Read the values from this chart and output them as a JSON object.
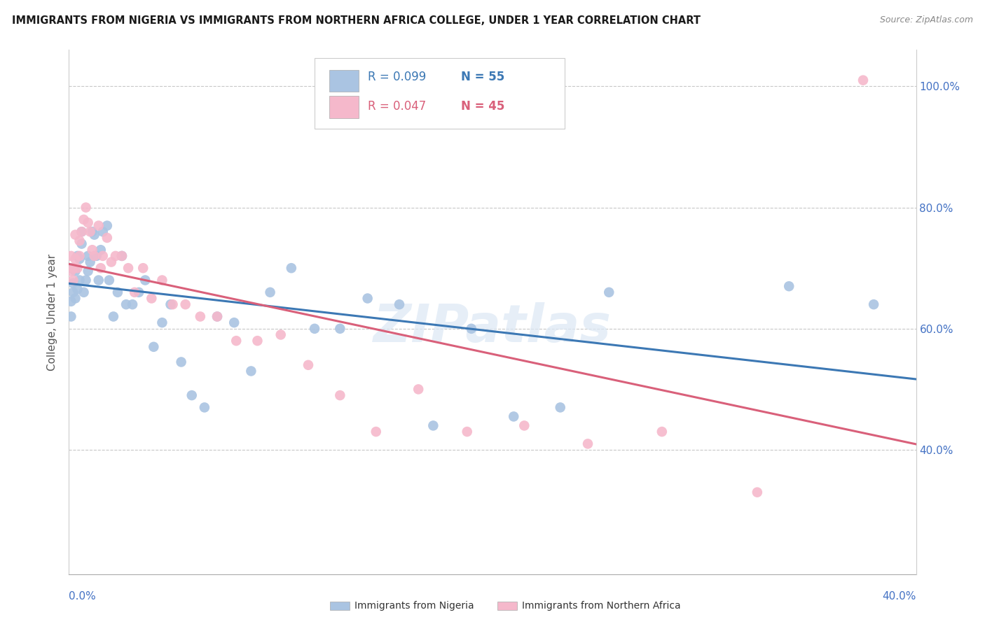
{
  "title": "IMMIGRANTS FROM NIGERIA VS IMMIGRANTS FROM NORTHERN AFRICA COLLEGE, UNDER 1 YEAR CORRELATION CHART",
  "source": "Source: ZipAtlas.com",
  "ylabel": "College, Under 1 year",
  "watermark": "ZIPatlas",
  "legend_nigeria_R": "R = 0.099",
  "legend_nigeria_N": "N = 55",
  "legend_north_africa_R": "R = 0.047",
  "legend_north_africa_N": "N = 45",
  "nigeria_color": "#aac4e2",
  "nigeria_line_color": "#3c78b4",
  "north_africa_color": "#f5b8cb",
  "north_africa_line_color": "#d9607a",
  "xlim": [
    0.0,
    0.4
  ],
  "ylim": [
    0.195,
    1.06
  ],
  "nigeria_x": [
    0.001,
    0.001,
    0.001,
    0.002,
    0.002,
    0.003,
    0.003,
    0.004,
    0.004,
    0.005,
    0.005,
    0.006,
    0.006,
    0.007,
    0.008,
    0.009,
    0.009,
    0.01,
    0.011,
    0.012,
    0.013,
    0.014,
    0.015,
    0.016,
    0.018,
    0.019,
    0.021,
    0.023,
    0.025,
    0.027,
    0.03,
    0.033,
    0.036,
    0.04,
    0.044,
    0.048,
    0.053,
    0.058,
    0.064,
    0.07,
    0.078,
    0.086,
    0.095,
    0.105,
    0.116,
    0.128,
    0.141,
    0.156,
    0.172,
    0.19,
    0.21,
    0.232,
    0.255,
    0.34,
    0.38
  ],
  "nigeria_y": [
    0.7,
    0.645,
    0.62,
    0.675,
    0.66,
    0.695,
    0.65,
    0.72,
    0.665,
    0.68,
    0.715,
    0.74,
    0.76,
    0.66,
    0.68,
    0.72,
    0.695,
    0.71,
    0.76,
    0.755,
    0.72,
    0.68,
    0.73,
    0.76,
    0.77,
    0.68,
    0.62,
    0.66,
    0.72,
    0.64,
    0.64,
    0.66,
    0.68,
    0.57,
    0.61,
    0.64,
    0.545,
    0.49,
    0.47,
    0.62,
    0.61,
    0.53,
    0.66,
    0.7,
    0.6,
    0.6,
    0.65,
    0.64,
    0.44,
    0.6,
    0.455,
    0.47,
    0.66,
    0.67,
    0.64
  ],
  "north_africa_x": [
    0.001,
    0.001,
    0.002,
    0.002,
    0.003,
    0.003,
    0.004,
    0.005,
    0.005,
    0.006,
    0.007,
    0.008,
    0.009,
    0.01,
    0.011,
    0.012,
    0.014,
    0.015,
    0.016,
    0.018,
    0.02,
    0.022,
    0.025,
    0.028,
    0.031,
    0.035,
    0.039,
    0.044,
    0.049,
    0.055,
    0.062,
    0.07,
    0.079,
    0.089,
    0.1,
    0.113,
    0.128,
    0.145,
    0.165,
    0.188,
    0.215,
    0.245,
    0.28,
    0.325,
    0.375
  ],
  "north_africa_y": [
    0.72,
    0.695,
    0.7,
    0.68,
    0.715,
    0.755,
    0.7,
    0.745,
    0.72,
    0.76,
    0.78,
    0.8,
    0.775,
    0.76,
    0.73,
    0.72,
    0.77,
    0.7,
    0.72,
    0.75,
    0.71,
    0.72,
    0.72,
    0.7,
    0.66,
    0.7,
    0.65,
    0.68,
    0.64,
    0.64,
    0.62,
    0.62,
    0.58,
    0.58,
    0.59,
    0.54,
    0.49,
    0.43,
    0.5,
    0.43,
    0.44,
    0.41,
    0.43,
    0.33,
    1.01
  ]
}
